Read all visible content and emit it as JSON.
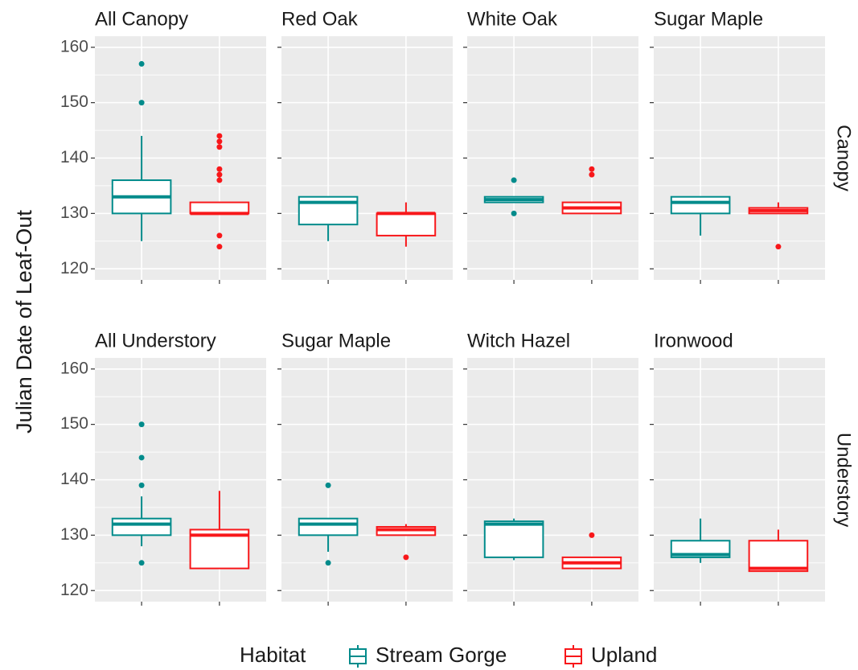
{
  "y_label": "Julian Date of Leaf-Out",
  "row_labels": [
    "Canopy",
    "Understory"
  ],
  "legend": {
    "title": "Habitat",
    "entries": [
      {
        "name": "Stream Gorge",
        "color": "#008b8b"
      },
      {
        "name": "Upland",
        "color": "#f8171a"
      }
    ]
  },
  "chart_data": [
    {
      "type": "box",
      "title": "All Canopy",
      "ylim": [
        118,
        162
      ],
      "yticks": [
        120,
        130,
        140,
        150,
        160
      ],
      "grid": true,
      "series": [
        {
          "whisker_low": 125,
          "q1": 130,
          "median": 133,
          "q3": 136,
          "whisker_high": 144,
          "outliers": [
            150,
            157
          ]
        },
        {
          "whisker_low": 130,
          "q1": 130,
          "median": 130,
          "q3": 132,
          "whisker_high": 132,
          "outliers": [
            124,
            126,
            136,
            137,
            138,
            142,
            143,
            144
          ]
        }
      ]
    },
    {
      "type": "box",
      "title": "Red Oak",
      "ylim": [
        118,
        162
      ],
      "yticks": [
        120,
        130,
        140,
        150,
        160
      ],
      "grid": true,
      "series": [
        {
          "whisker_low": 125,
          "q1": 128,
          "median": 132,
          "q3": 133,
          "whisker_high": 133,
          "outliers": []
        },
        {
          "whisker_low": 124,
          "q1": 126,
          "median": 130,
          "q3": 130,
          "whisker_high": 132,
          "outliers": []
        }
      ]
    },
    {
      "type": "box",
      "title": "White Oak",
      "ylim": [
        118,
        162
      ],
      "yticks": [
        120,
        130,
        140,
        150,
        160
      ],
      "grid": true,
      "series": [
        {
          "whisker_low": 132,
          "q1": 132,
          "median": 132.5,
          "q3": 133,
          "whisker_high": 133,
          "outliers": [
            130,
            136
          ]
        },
        {
          "whisker_low": 130,
          "q1": 130,
          "median": 131,
          "q3": 132,
          "whisker_high": 132,
          "outliers": [
            137,
            138
          ]
        }
      ]
    },
    {
      "type": "box",
      "title": "Sugar Maple",
      "ylim": [
        118,
        162
      ],
      "yticks": [
        120,
        130,
        140,
        150,
        160
      ],
      "grid": true,
      "series": [
        {
          "whisker_low": 126,
          "q1": 130,
          "median": 132,
          "q3": 133,
          "whisker_high": 133,
          "outliers": []
        },
        {
          "whisker_low": 130,
          "q1": 130,
          "median": 130.5,
          "q3": 131,
          "whisker_high": 132,
          "outliers": [
            124
          ]
        }
      ]
    },
    {
      "type": "box",
      "title": "All Understory",
      "ylim": [
        118,
        162
      ],
      "yticks": [
        120,
        130,
        140,
        150,
        160
      ],
      "grid": true,
      "series": [
        {
          "whisker_low": 128,
          "q1": 130,
          "median": 132,
          "q3": 133,
          "whisker_high": 137,
          "outliers": [
            125,
            139,
            144,
            150
          ]
        },
        {
          "whisker_low": 124,
          "q1": 124,
          "median": 130,
          "q3": 131,
          "whisker_high": 138,
          "outliers": []
        }
      ]
    },
    {
      "type": "box",
      "title": "Sugar Maple",
      "ylim": [
        118,
        162
      ],
      "yticks": [
        120,
        130,
        140,
        150,
        160
      ],
      "grid": true,
      "series": [
        {
          "whisker_low": 127,
          "q1": 130,
          "median": 132,
          "q3": 133,
          "whisker_high": 133,
          "outliers": [
            125,
            139
          ]
        },
        {
          "whisker_low": 130,
          "q1": 130,
          "median": 131,
          "q3": 131.5,
          "whisker_high": 132,
          "outliers": [
            126
          ]
        }
      ]
    },
    {
      "type": "box",
      "title": "Witch Hazel",
      "ylim": [
        118,
        162
      ],
      "yticks": [
        120,
        130,
        140,
        150,
        160
      ],
      "grid": true,
      "series": [
        {
          "whisker_low": 125.5,
          "q1": 126,
          "median": 132,
          "q3": 132.5,
          "whisker_high": 133,
          "outliers": []
        },
        {
          "whisker_low": 124,
          "q1": 124,
          "median": 125,
          "q3": 126,
          "whisker_high": 126,
          "outliers": [
            130
          ]
        }
      ]
    },
    {
      "type": "box",
      "title": "Ironwood",
      "ylim": [
        118,
        162
      ],
      "yticks": [
        120,
        130,
        140,
        150,
        160
      ],
      "grid": true,
      "series": [
        {
          "whisker_low": 125,
          "q1": 126,
          "median": 126.5,
          "q3": 129,
          "whisker_high": 133,
          "outliers": []
        },
        {
          "whisker_low": 123.5,
          "q1": 123.5,
          "median": 124,
          "q3": 129,
          "whisker_high": 131,
          "outliers": []
        }
      ]
    }
  ]
}
